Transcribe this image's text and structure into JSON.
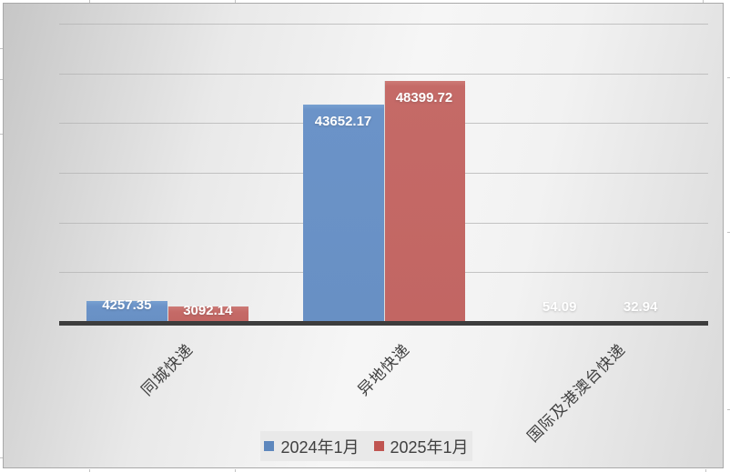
{
  "chart_data": {
    "type": "bar",
    "title": "",
    "xlabel": "",
    "ylabel": "",
    "categories": [
      "同城快递",
      "异地快递",
      "国际及港澳台快递"
    ],
    "series": [
      {
        "name": "2024年1月",
        "color": "#6b93c8",
        "legend_color": "#5d87bd",
        "values": [
          4257.35,
          43652.17,
          54.09
        ]
      },
      {
        "name": "2025年1月",
        "color": "#c56a67",
        "legend_color": "#c05551",
        "values": [
          3092.14,
          48399.72,
          32.94
        ]
      }
    ],
    "data_labels": [
      [
        "4257.35",
        "43652.17",
        "54.09"
      ],
      [
        "3092.14",
        "48399.72",
        "32.94"
      ]
    ],
    "ylim": [
      0,
      60000
    ],
    "gridline_step": 10000,
    "y_axis_labels_visible": false,
    "grid": "horizontal",
    "legend_position": "bottom",
    "label_color": "#ffffff",
    "axis_line_color": "#3d3d3d",
    "gridline_color": "#b3b3b3",
    "category_label_color": "#404040"
  }
}
